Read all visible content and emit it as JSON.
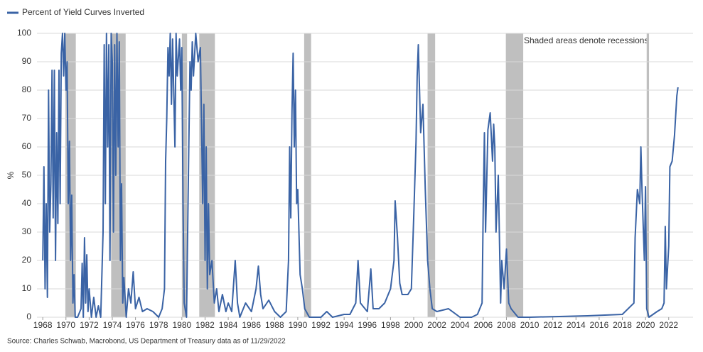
{
  "chart_data": {
    "type": "line",
    "series": [
      {
        "name": "Percent of Yield Curves Inverted",
        "color": "#3a63a5",
        "x": [
          1968.0,
          1968.1,
          1968.2,
          1968.3,
          1968.4,
          1968.5,
          1968.6,
          1968.7,
          1968.8,
          1968.9,
          1969.0,
          1969.1,
          1969.2,
          1969.3,
          1969.4,
          1969.5,
          1969.6,
          1969.7,
          1969.8,
          1969.9,
          1970.0,
          1970.1,
          1970.2,
          1970.3,
          1970.4,
          1970.5,
          1970.6,
          1970.7,
          1970.8,
          1971.0,
          1971.3,
          1971.4,
          1971.5,
          1971.6,
          1971.7,
          1971.8,
          1971.9,
          1972.0,
          1972.2,
          1972.4,
          1972.6,
          1972.8,
          1973.0,
          1973.2,
          1973.3,
          1973.4,
          1973.5,
          1973.6,
          1973.7,
          1973.8,
          1973.9,
          1974.0,
          1974.1,
          1974.2,
          1974.3,
          1974.4,
          1974.5,
          1974.6,
          1974.7,
          1974.8,
          1974.9,
          1975.0,
          1975.2,
          1975.4,
          1975.6,
          1975.8,
          1976.0,
          1976.3,
          1976.6,
          1977.0,
          1977.5,
          1978.0,
          1978.3,
          1978.5,
          1978.6,
          1978.7,
          1978.8,
          1978.9,
          1979.0,
          1979.1,
          1979.2,
          1979.4,
          1979.5,
          1979.6,
          1979.8,
          1979.9,
          1980.0,
          1980.1,
          1980.2,
          1980.4,
          1980.6,
          1980.7,
          1980.8,
          1980.9,
          1981.0,
          1981.2,
          1981.4,
          1981.6,
          1981.8,
          1981.9,
          1982.0,
          1982.1,
          1982.2,
          1982.3,
          1982.4,
          1982.6,
          1982.8,
          1983.0,
          1983.2,
          1983.5,
          1983.8,
          1984.0,
          1984.3,
          1984.6,
          1984.8,
          1985.0,
          1985.5,
          1986.0,
          1986.4,
          1986.6,
          1986.8,
          1987.0,
          1987.5,
          1988.0,
          1988.5,
          1989.0,
          1989.2,
          1989.3,
          1989.4,
          1989.5,
          1989.6,
          1989.7,
          1989.8,
          1989.9,
          1990.0,
          1990.2,
          1990.4,
          1990.6,
          1991.0,
          1991.5,
          1992.0,
          1992.5,
          1993.0,
          1994.0,
          1994.5,
          1995.0,
          1995.2,
          1995.4,
          1995.8,
          1996.0,
          1996.3,
          1996.5,
          1997.0,
          1997.5,
          1998.0,
          1998.3,
          1998.4,
          1998.6,
          1998.8,
          1999.0,
          1999.5,
          1999.8,
          2000.0,
          2000.2,
          2000.3,
          2000.4,
          2000.6,
          2000.8,
          2001.0,
          2001.2,
          2001.4,
          2001.6,
          2002.0,
          2003.0,
          2004.0,
          2005.0,
          2005.5,
          2005.9,
          2006.0,
          2006.1,
          2006.2,
          2006.4,
          2006.6,
          2006.8,
          2006.9,
          2007.0,
          2007.1,
          2007.3,
          2007.5,
          2007.6,
          2007.8,
          2008.0,
          2008.2,
          2008.4,
          2009.0,
          2010.0,
          2015.0,
          2018.0,
          2019.0,
          2019.1,
          2019.3,
          2019.5,
          2019.6,
          2019.7,
          2019.9,
          2020.0,
          2020.1,
          2020.3,
          2021.0,
          2021.4,
          2021.6,
          2021.7,
          2021.8,
          2022.0,
          2022.1,
          2022.3,
          2022.5,
          2022.7,
          2022.8
        ],
        "values": [
          20,
          53,
          10,
          40,
          7,
          80,
          30,
          47,
          87,
          35,
          87,
          20,
          65,
          33,
          87,
          40,
          93,
          100,
          85,
          100,
          80,
          90,
          40,
          62,
          20,
          43,
          5,
          15,
          0,
          0,
          3,
          19,
          0,
          28,
          5,
          22,
          2,
          10,
          0,
          7,
          0,
          4,
          0,
          30,
          96,
          40,
          100,
          60,
          96,
          20,
          100,
          90,
          30,
          96,
          50,
          100,
          60,
          97,
          20,
          47,
          5,
          14,
          0,
          10,
          5,
          16,
          3,
          7,
          2,
          3,
          2,
          0,
          3,
          10,
          55,
          70,
          95,
          85,
          100,
          75,
          98,
          60,
          100,
          85,
          98,
          80,
          95,
          40,
          5,
          0,
          60,
          90,
          80,
          97,
          85,
          100,
          90,
          95,
          40,
          75,
          20,
          60,
          10,
          40,
          15,
          20,
          5,
          10,
          2,
          8,
          2,
          5,
          2,
          20,
          5,
          0,
          5,
          2,
          10,
          18,
          8,
          3,
          6,
          2,
          0,
          2,
          20,
          60,
          35,
          73,
          93,
          60,
          80,
          40,
          45,
          15,
          10,
          3,
          0,
          0,
          0,
          2,
          0,
          1,
          1,
          5,
          20,
          5,
          3,
          2,
          17,
          3,
          3,
          5,
          10,
          20,
          41,
          28,
          12,
          8,
          8,
          10,
          35,
          62,
          85,
          96,
          65,
          75,
          45,
          20,
          10,
          3,
          2,
          3,
          0,
          0,
          1,
          5,
          38,
          65,
          30,
          66,
          72,
          55,
          68,
          60,
          30,
          50,
          5,
          20,
          10,
          24,
          5,
          3,
          0,
          0,
          0.5,
          1,
          5,
          28,
          45,
          40,
          60,
          45,
          20,
          46,
          3,
          0,
          2,
          3,
          5,
          32,
          10,
          25,
          53,
          55,
          64,
          78,
          81
        ]
      }
    ],
    "recessions": [
      [
        1969.95,
        1970.85
      ],
      [
        1973.9,
        1975.15
      ],
      [
        1980.0,
        1980.45
      ],
      [
        1981.5,
        1982.85
      ],
      [
        1990.55,
        1991.15
      ],
      [
        2001.2,
        2001.85
      ],
      [
        2007.95,
        2009.45
      ],
      [
        2020.1,
        2020.3
      ]
    ],
    "recession_color": "#bfbfbf",
    "annotation": "Shaded areas denote recessions",
    "ylabel": "%",
    "source": "Source: Charles Schwab, Macrobond, US Department of Treasury data as of 11/29/2022",
    "xlim": [
      1967.5,
      2024.1
    ],
    "xticks": [
      1968,
      1970,
      1972,
      1974,
      1976,
      1978,
      1980,
      1982,
      1984,
      1986,
      1988,
      1990,
      1992,
      1994,
      1996,
      1998,
      2000,
      2002,
      2004,
      2006,
      2008,
      2010,
      2012,
      2014,
      2016,
      2018,
      2020,
      2022
    ],
    "ylim": [
      0,
      100
    ],
    "yticks": [
      0,
      10,
      20,
      30,
      40,
      50,
      60,
      70,
      80,
      90,
      100
    ],
    "grid": true,
    "legend": "top-left"
  }
}
